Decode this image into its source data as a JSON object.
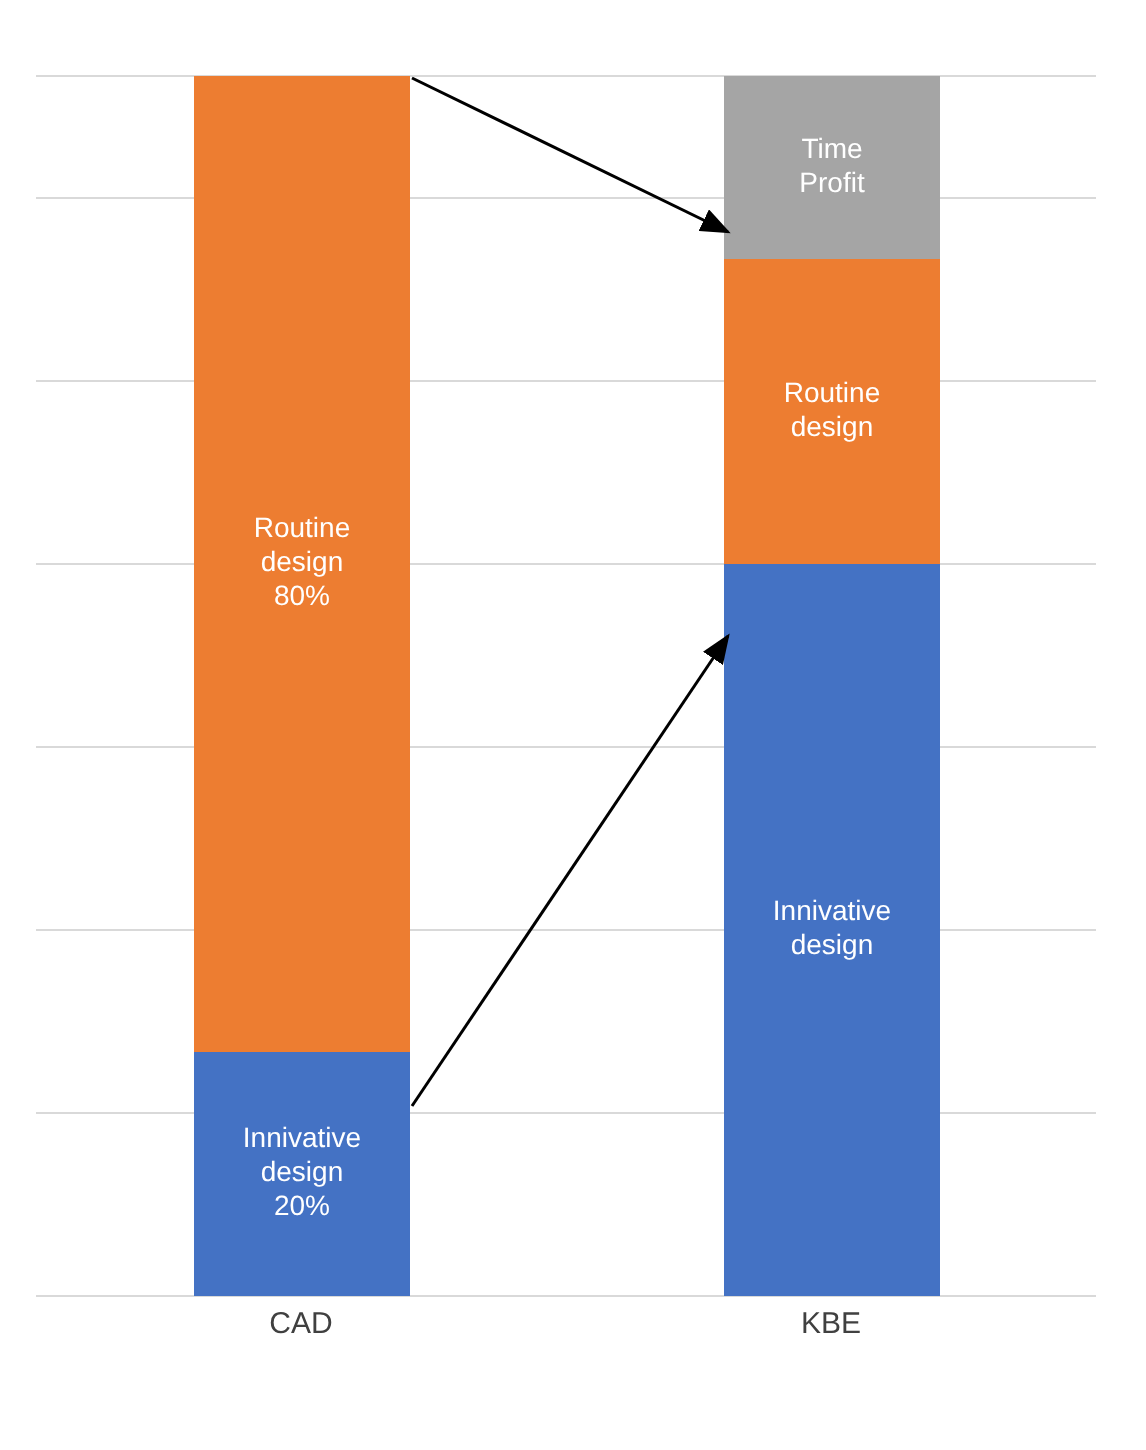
{
  "chart_data": {
    "type": "bar",
    "stacked": true,
    "grid": "y",
    "ylim": [
      0,
      100
    ],
    "categories": [
      "CAD",
      "KBE"
    ],
    "series": [
      {
        "color": "#4472c4",
        "values": [
          20,
          60
        ],
        "value_labels": [
          "Innivative\ndesign\n20%",
          "Innivative\ndesign"
        ]
      },
      {
        "color": "#ed7d31",
        "values": [
          80,
          25
        ],
        "value_labels": [
          "Routine\ndesign\n80%",
          "Routine\ndesign"
        ]
      },
      {
        "color": "#a5a5a5",
        "values": [
          null,
          15
        ],
        "value_labels": [
          null,
          "Time\nProfit"
        ]
      }
    ]
  }
}
